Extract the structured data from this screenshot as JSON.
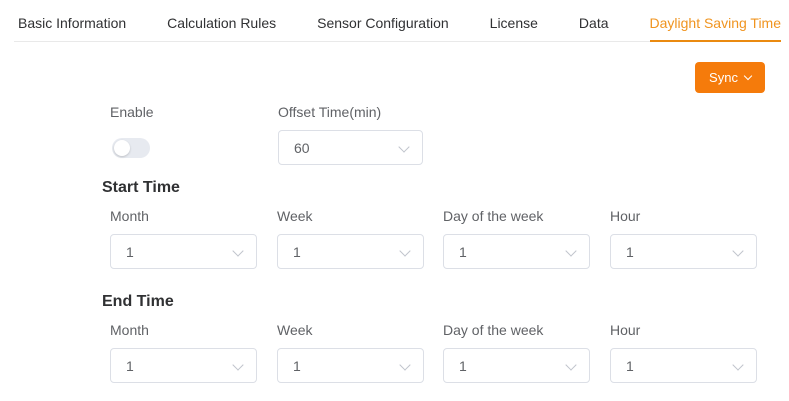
{
  "colors": {
    "accent_orange": "#f57b0b",
    "tab_active_orange": "#f0941f",
    "tab_underline_orange": "#ea8a10",
    "select_border": "#dcdfe6",
    "text_dark": "#303133",
    "text_gray": "#606266"
  },
  "icons": {
    "dropdown_chevron": "chevron-down",
    "sync_chevron": "chevron-down"
  },
  "tabs": {
    "items": [
      {
        "label": "Basic Information",
        "active": false
      },
      {
        "label": "Calculation Rules",
        "active": false
      },
      {
        "label": "Sensor Configuration",
        "active": false
      },
      {
        "label": "License",
        "active": false
      },
      {
        "label": "Data",
        "active": false
      },
      {
        "label": "Daylight Saving Time",
        "active": true
      }
    ]
  },
  "toolbar": {
    "sync_label": "Sync"
  },
  "form": {
    "enable": {
      "label": "Enable",
      "state": "off"
    },
    "offset": {
      "label": "Offset Time(min)",
      "value": "60"
    },
    "start_time": {
      "heading": "Start Time",
      "fields": [
        {
          "label": "Month",
          "value": "1"
        },
        {
          "label": "Week",
          "value": "1"
        },
        {
          "label": "Day of the week",
          "value": "1"
        },
        {
          "label": "Hour",
          "value": "1"
        }
      ]
    },
    "end_time": {
      "heading": "End Time",
      "fields": [
        {
          "label": "Month",
          "value": "1"
        },
        {
          "label": "Week",
          "value": "1"
        },
        {
          "label": "Day of the week",
          "value": "1"
        },
        {
          "label": "Hour",
          "value": "1"
        }
      ]
    }
  }
}
